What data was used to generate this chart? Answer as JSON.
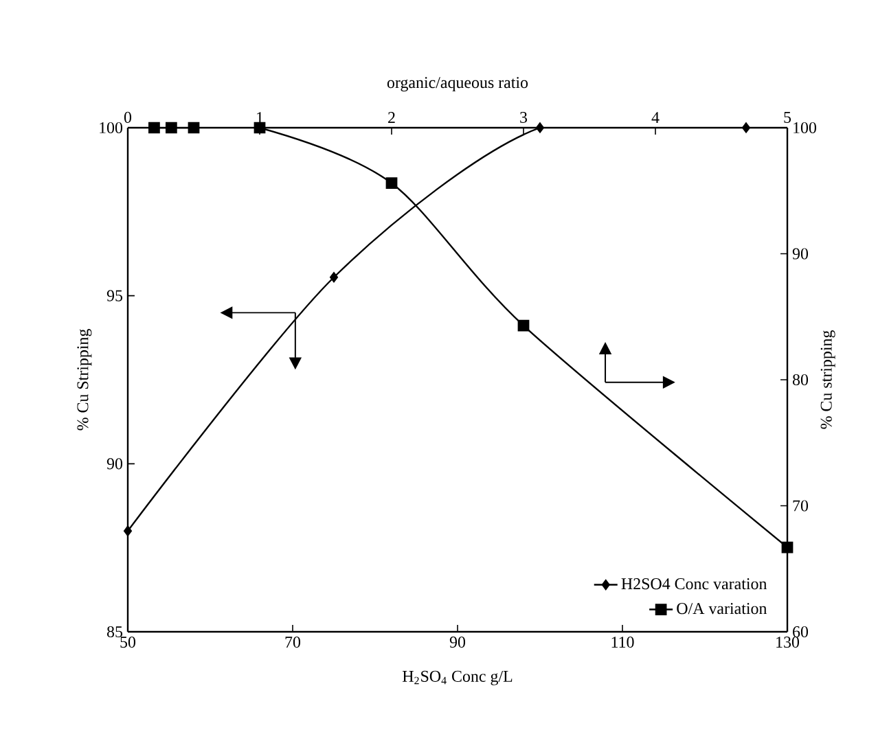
{
  "chart_data": [
    {
      "type": "line",
      "xlabel": "H$_{2}$SO$_{4}$ Conc g/L",
      "ylabel": "% Cu  Stripping",
      "xlim": [
        50,
        130
      ],
      "xticks": [
        50,
        70,
        90,
        110,
        130
      ],
      "ylim": [
        85,
        100
      ],
      "yticks": [
        85,
        90,
        95,
        100
      ],
      "legend": "bottom right",
      "series": [
        {
          "name": "H2SO4 Conc varation",
          "color": "#000000",
          "marker": "diamond",
          "x": [
            50,
            75,
            100,
            125
          ],
          "values": [
            88,
            95.55,
            100,
            100
          ]
        }
      ]
    },
    {
      "type": "line",
      "xlabel": "organic/aqueous ratio",
      "ylabel": "% Cu  stripping",
      "xlim": [
        0,
        5
      ],
      "xticks": [
        0,
        1,
        2,
        3,
        4,
        5
      ],
      "ylim": [
        60,
        100
      ],
      "yticks": [
        60,
        70,
        80,
        90,
        100
      ],
      "legend": "bottom right",
      "series": [
        {
          "name": "O/A variation",
          "color": "#000000",
          "marker": "square",
          "x": [
            0.2,
            0.33,
            0.5,
            1,
            2,
            3,
            5
          ],
          "values": [
            100,
            100,
            100,
            100,
            95.6,
            84.3,
            66.7
          ]
        }
      ]
    }
  ]
}
